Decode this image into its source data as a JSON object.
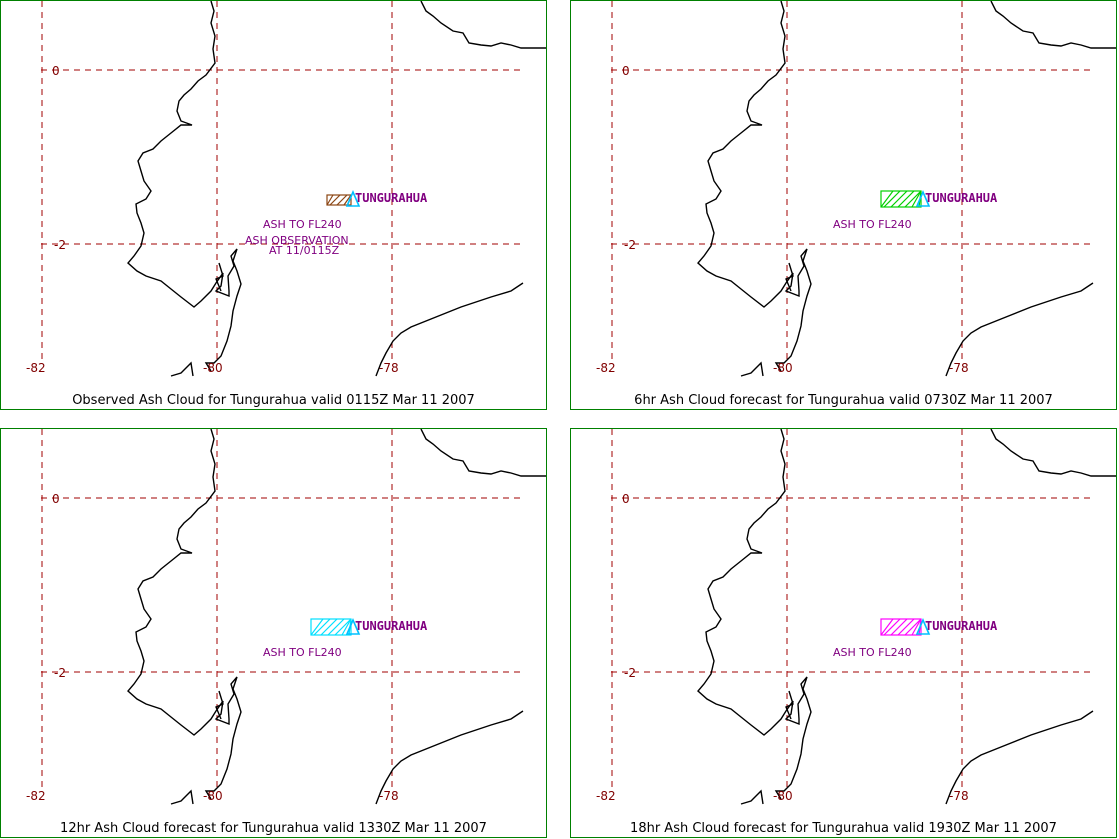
{
  "colors": {
    "border": "#008000",
    "grid": "#a00000",
    "tick_label": "#800000",
    "coast": "#000000",
    "annotation": "#800080",
    "volcano_marker": "#00c0ff"
  },
  "panels": [
    {
      "caption": "Observed Ash Cloud for Tungurahua valid 0115Z Mar 11 2007",
      "volcano_name": "TUNGURAHUA",
      "notes": [
        "ASH TO FL240",
        "ASH OBSERVATION",
        "AT 11/0115Z"
      ],
      "ash_color": "#8b4513",
      "lat_labels": [
        "0",
        "-2"
      ],
      "lon_labels": [
        "-82",
        "-80",
        "-78"
      ]
    },
    {
      "caption": "6hr Ash Cloud forecast for Tungurahua valid 0730Z Mar 11 2007",
      "volcano_name": "TUNGURAHUA",
      "notes": [
        "ASH TO FL240"
      ],
      "ash_color": "#00d000",
      "lat_labels": [
        "0",
        "-2"
      ],
      "lon_labels": [
        "-82",
        "-80",
        "-78"
      ]
    },
    {
      "caption": "12hr Ash Cloud forecast for Tungurahua valid 1330Z Mar 11 2007",
      "volcano_name": "TUNGURAHUA",
      "notes": [
        "ASH TO FL240"
      ],
      "ash_color": "#00e0ff",
      "lat_labels": [
        "0",
        "-2"
      ],
      "lon_labels": [
        "-82",
        "-80",
        "-78"
      ]
    },
    {
      "caption": "18hr Ash Cloud forecast for Tungurahua valid 1930Z Mar 11 2007",
      "volcano_name": "TUNGURAHUA",
      "notes": [
        "ASH TO FL240"
      ],
      "ash_color": "#ff00ff",
      "lat_labels": [
        "0",
        "-2"
      ],
      "lon_labels": [
        "-82",
        "-80",
        "-78"
      ]
    }
  ]
}
